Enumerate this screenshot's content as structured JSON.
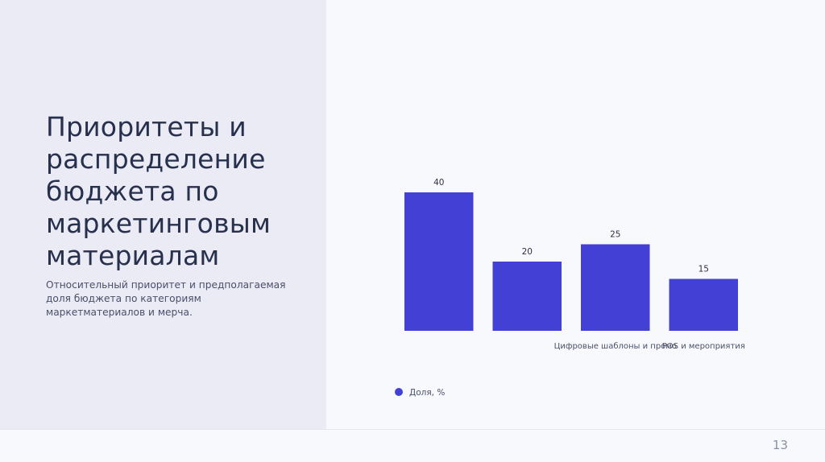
{
  "slide": {
    "title": "Приоритеты и распределение бюджета по маркетинговым материалам",
    "subtitle": "Относительный приоритет и предполагаемая доля бюджета по категориям маркетматериалов и мерча.",
    "page_number": "13"
  },
  "colors": {
    "bar": "#4340d6",
    "left_panel": "#ebebf6",
    "background": "#f8f9fc",
    "text_dark": "#27304c",
    "text_muted": "#4a5069"
  },
  "chart_data": {
    "type": "bar",
    "categories": [
      "",
      "",
      "Цифровые шаблоны и промо",
      "POS и мероприятия"
    ],
    "series": [
      {
        "name": "Доля, %",
        "values": [
          40,
          20,
          25,
          15
        ]
      }
    ],
    "data_labels": [
      "40",
      "20",
      "25",
      "15"
    ],
    "ylim": [
      0,
      40
    ],
    "grid": false,
    "legend_position": "bottom-left"
  }
}
